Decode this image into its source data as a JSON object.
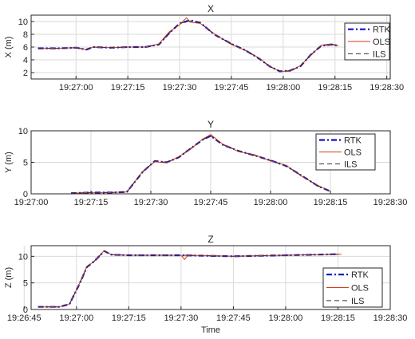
{
  "chart_data": [
    {
      "type": "line",
      "title": "X",
      "xlabel": "",
      "ylabel": "X (m)",
      "xlim": [
        "19:26:47",
        "19:28:31"
      ],
      "ylim": [
        1,
        11
      ],
      "xticks": [
        "19:27:00",
        "19:27:15",
        "19:27:30",
        "19:27:45",
        "19:28:00",
        "19:28:15",
        "19:28:30"
      ],
      "yticks": [
        "2",
        "4",
        "6",
        "8",
        "10"
      ],
      "grid": true,
      "legend": "top-right",
      "series": [
        {
          "name": "RTK",
          "style": "dash-dot",
          "color": "#1010c8",
          "x": [
            "19:26:49",
            "19:26:55",
            "19:27:00",
            "19:27:03",
            "19:27:05",
            "19:27:10",
            "19:27:15",
            "19:27:20",
            "19:27:24",
            "19:27:27",
            "19:27:30",
            "19:27:33",
            "19:27:36",
            "19:27:40",
            "19:27:45",
            "19:27:49",
            "19:27:53",
            "19:27:56",
            "19:27:59",
            "19:28:02",
            "19:28:05",
            "19:28:08",
            "19:28:11",
            "19:28:14",
            "19:28:16"
          ],
          "y": [
            5.8,
            5.8,
            5.9,
            5.6,
            6.0,
            5.9,
            6.0,
            6.0,
            6.4,
            8.2,
            9.7,
            10.2,
            9.8,
            8.0,
            6.5,
            5.5,
            4.2,
            3.0,
            2.2,
            2.3,
            3.0,
            4.8,
            6.2,
            6.4,
            6.2
          ]
        },
        {
          "name": "OLS",
          "style": "solid",
          "color": "#d93a1f",
          "x": [
            "19:26:49",
            "19:26:55",
            "19:27:00",
            "19:27:03",
            "19:27:05",
            "19:27:10",
            "19:27:15",
            "19:27:20",
            "19:27:24",
            "19:27:27",
            "19:27:30",
            "19:27:32",
            "19:27:33",
            "19:27:36",
            "19:27:40",
            "19:27:45",
            "19:27:49",
            "19:27:53",
            "19:27:56",
            "19:27:59",
            "19:28:02",
            "19:28:05",
            "19:28:08",
            "19:28:11",
            "19:28:14",
            "19:28:16"
          ],
          "y": [
            5.8,
            5.8,
            5.9,
            5.6,
            6.0,
            5.9,
            6.0,
            6.0,
            6.5,
            8.4,
            9.5,
            10.6,
            9.9,
            9.7,
            8.1,
            6.4,
            5.5,
            4.3,
            3.0,
            2.2,
            2.2,
            3.1,
            4.7,
            6.3,
            6.5,
            6.2
          ]
        },
        {
          "name": "ILS",
          "style": "dashed",
          "color": "#333333",
          "x": [
            "19:26:49",
            "19:26:55",
            "19:27:00",
            "19:27:03",
            "19:27:05",
            "19:27:10",
            "19:27:15",
            "19:27:20",
            "19:27:24",
            "19:27:27",
            "19:27:30",
            "19:27:33",
            "19:27:36",
            "19:27:40",
            "19:27:45",
            "19:27:49",
            "19:27:53",
            "19:27:56",
            "19:27:59",
            "19:28:02",
            "19:28:05",
            "19:28:08",
            "19:28:11",
            "19:28:14",
            "19:28:16"
          ],
          "y": [
            5.8,
            5.8,
            5.9,
            5.6,
            6.0,
            5.9,
            6.0,
            6.0,
            6.4,
            8.2,
            9.7,
            10.1,
            9.8,
            8.0,
            6.5,
            5.5,
            4.2,
            3.0,
            2.2,
            2.3,
            3.0,
            4.8,
            6.2,
            6.4,
            6.2
          ]
        }
      ]
    },
    {
      "type": "line",
      "title": "Y",
      "xlabel": "",
      "ylabel": "Y (m)",
      "xlim": [
        "19:27:00",
        "19:28:30"
      ],
      "ylim": [
        0,
        10
      ],
      "xticks": [
        "19:27:00",
        "19:27:15",
        "19:27:30",
        "19:27:45",
        "19:28:00",
        "19:28:15",
        "19:28:30"
      ],
      "yticks": [
        "0",
        "5",
        "10"
      ],
      "grid": true,
      "legend": "top-right",
      "series": [
        {
          "name": "RTK",
          "style": "dash-dot",
          "color": "#1010c8",
          "x": [
            "19:27:10",
            "19:27:15",
            "19:27:20",
            "19:27:24",
            "19:27:28",
            "19:27:31",
            "19:27:34",
            "19:27:37",
            "19:27:40",
            "19:27:43",
            "19:27:45",
            "19:27:48",
            "19:27:52",
            "19:27:56",
            "19:28:00",
            "19:28:04",
            "19:28:08",
            "19:28:12",
            "19:28:15"
          ],
          "y": [
            0.1,
            0.2,
            0.2,
            0.3,
            3.5,
            5.2,
            5.0,
            5.8,
            7.2,
            8.6,
            9.2,
            7.8,
            6.8,
            6.1,
            5.3,
            4.4,
            2.8,
            1.2,
            0.4
          ]
        },
        {
          "name": "OLS",
          "style": "solid",
          "color": "#d93a1f",
          "x": [
            "19:27:10",
            "19:27:15",
            "19:27:20",
            "19:27:24",
            "19:27:28",
            "19:27:31",
            "19:27:34",
            "19:27:37",
            "19:27:40",
            "19:27:43",
            "19:27:45",
            "19:27:48",
            "19:27:52",
            "19:27:56",
            "19:28:00",
            "19:28:04",
            "19:28:08",
            "19:28:12",
            "19:28:15"
          ],
          "y": [
            0.1,
            0.2,
            0.2,
            0.3,
            3.6,
            5.1,
            4.9,
            5.9,
            7.1,
            8.7,
            9.4,
            7.9,
            6.7,
            6.2,
            5.2,
            4.5,
            2.7,
            1.3,
            0.4
          ]
        },
        {
          "name": "ILS",
          "style": "dashed",
          "color": "#333333",
          "x": [
            "19:27:10",
            "19:27:15",
            "19:27:20",
            "19:27:24",
            "19:27:28",
            "19:27:31",
            "19:27:34",
            "19:27:37",
            "19:27:40",
            "19:27:43",
            "19:27:45",
            "19:27:48",
            "19:27:52",
            "19:27:56",
            "19:28:00",
            "19:28:04",
            "19:28:08",
            "19:28:12",
            "19:28:15"
          ],
          "y": [
            0.1,
            0.2,
            0.2,
            0.3,
            3.5,
            5.2,
            5.0,
            5.8,
            7.2,
            8.6,
            9.2,
            7.8,
            6.8,
            6.1,
            5.3,
            4.4,
            2.8,
            1.2,
            0.4
          ]
        }
      ]
    },
    {
      "type": "line",
      "title": "Z",
      "xlabel": "Time",
      "ylabel": "Z (m)",
      "xlim": [
        "19:26:47",
        "19:28:30"
      ],
      "ylim": [
        0,
        12
      ],
      "xticks": [
        "19:26:45",
        "19:27:00",
        "19:27:15",
        "19:27:30",
        "19:27:45",
        "19:28:00",
        "19:28:15",
        "19:28:30"
      ],
      "yticks": [
        "0",
        "5",
        "10"
      ],
      "grid": true,
      "legend": "bottom-right",
      "series": [
        {
          "name": "RTK",
          "style": "dash-dot",
          "color": "#1010c8",
          "x": [
            "19:26:49",
            "19:26:55",
            "19:26:58",
            "19:27:01",
            "19:27:03",
            "19:27:05",
            "19:27:08",
            "19:27:10",
            "19:27:15",
            "19:27:30",
            "19:27:45",
            "19:28:00",
            "19:28:15"
          ],
          "y": [
            0.5,
            0.5,
            1.0,
            5.0,
            8.0,
            9.0,
            11.0,
            10.3,
            10.2,
            10.2,
            10.0,
            10.2,
            10.4
          ]
        },
        {
          "name": "OLS",
          "style": "solid",
          "color": "#d93a1f",
          "x": [
            "19:26:49",
            "19:26:55",
            "19:26:58",
            "19:27:01",
            "19:27:03",
            "19:27:05",
            "19:27:08",
            "19:27:10",
            "19:27:15",
            "19:27:30",
            "19:27:31",
            "19:27:32",
            "19:27:45",
            "19:28:00",
            "19:28:16"
          ],
          "y": [
            0.5,
            0.5,
            1.0,
            5.1,
            8.1,
            9.0,
            11.1,
            10.3,
            10.2,
            10.2,
            9.4,
            10.2,
            10.0,
            10.2,
            10.4
          ]
        },
        {
          "name": "ILS",
          "style": "dashed",
          "color": "#333333",
          "x": [
            "19:26:49",
            "19:26:55",
            "19:26:58",
            "19:27:01",
            "19:27:03",
            "19:27:05",
            "19:27:08",
            "19:27:10",
            "19:27:15",
            "19:27:30",
            "19:27:45",
            "19:28:00",
            "19:28:15"
          ],
          "y": [
            0.5,
            0.5,
            1.0,
            5.0,
            8.0,
            9.0,
            11.0,
            10.3,
            10.2,
            10.2,
            10.0,
            10.2,
            10.4
          ]
        }
      ]
    }
  ]
}
